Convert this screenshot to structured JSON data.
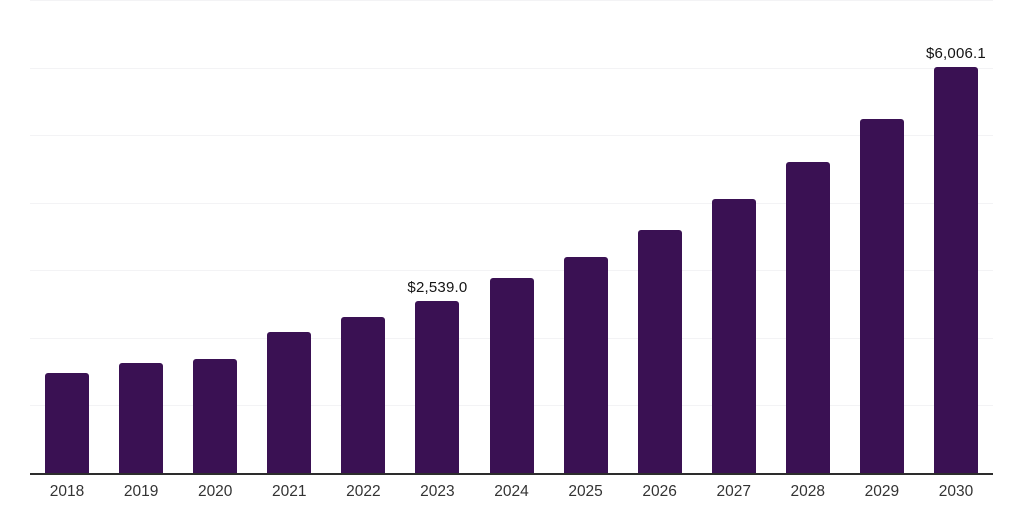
{
  "chart_data": {
    "type": "bar",
    "title": "",
    "xlabel": "",
    "ylabel": "",
    "categories": [
      "2018",
      "2019",
      "2020",
      "2021",
      "2022",
      "2023",
      "2024",
      "2025",
      "2026",
      "2027",
      "2028",
      "2029",
      "2030"
    ],
    "values": [
      1475,
      1630,
      1690,
      2090,
      2310,
      2539.0,
      2880,
      3195,
      3600,
      4055,
      4600,
      5240,
      6006.1
    ],
    "value_labels": {
      "2023": "$2,539.0",
      "2030": "$6,006.1"
    },
    "ylim": [
      0,
      7000
    ],
    "gridline_step": 1000,
    "grid": "horizontal",
    "y_tick_labels_visible": false,
    "legend": "none",
    "colors": {
      "bar": "#3a1153",
      "gridline": "#f3f3f5",
      "axis_line": "#2d2d2d",
      "tick_label": "#333333",
      "value_label": "#141414",
      "background": "#ffffff"
    }
  }
}
